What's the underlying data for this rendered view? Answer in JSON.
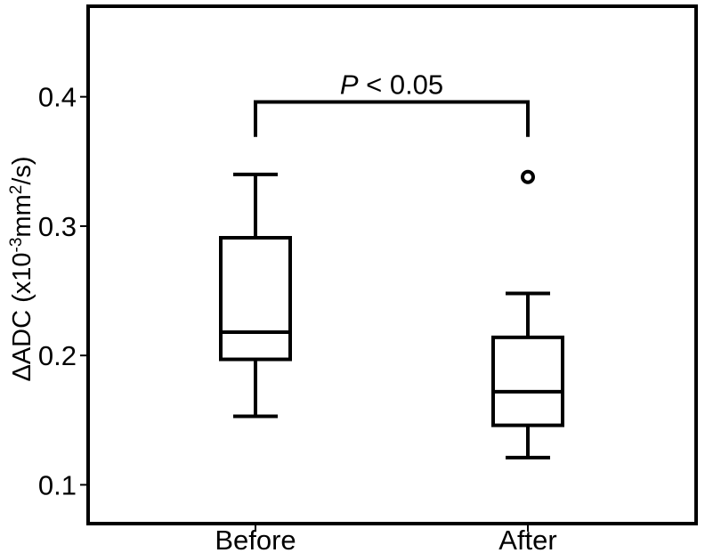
{
  "chart_data": {
    "type": "boxplot",
    "ylabel": {
      "prefix": "ΔADC (x10",
      "sup1": "-3",
      "mid": "mm",
      "sup2": "2",
      "suffix": "/s)"
    },
    "ylim": [
      0.07,
      0.47
    ],
    "yticks": [
      0.1,
      0.2,
      0.3,
      0.4
    ],
    "ytick_labels": [
      "0.1",
      "0.2",
      "0.3",
      "0.4"
    ],
    "categories": [
      "Before",
      "After"
    ],
    "boxes": [
      {
        "category": "Before",
        "whisker_low": 0.153,
        "q1": 0.197,
        "median": 0.218,
        "q3": 0.291,
        "whisker_high": 0.34,
        "outliers": []
      },
      {
        "category": "After",
        "whisker_low": 0.121,
        "q1": 0.146,
        "median": 0.172,
        "q3": 0.214,
        "whisker_high": 0.248,
        "outliers": [
          0.338
        ]
      }
    ],
    "annotation": {
      "italic": "P",
      "rest": " < 0.05",
      "between": [
        "Before",
        "After"
      ],
      "bracket_top": 0.396,
      "bracket_bottom": 0.369
    },
    "grid": false,
    "legend": "none"
  }
}
